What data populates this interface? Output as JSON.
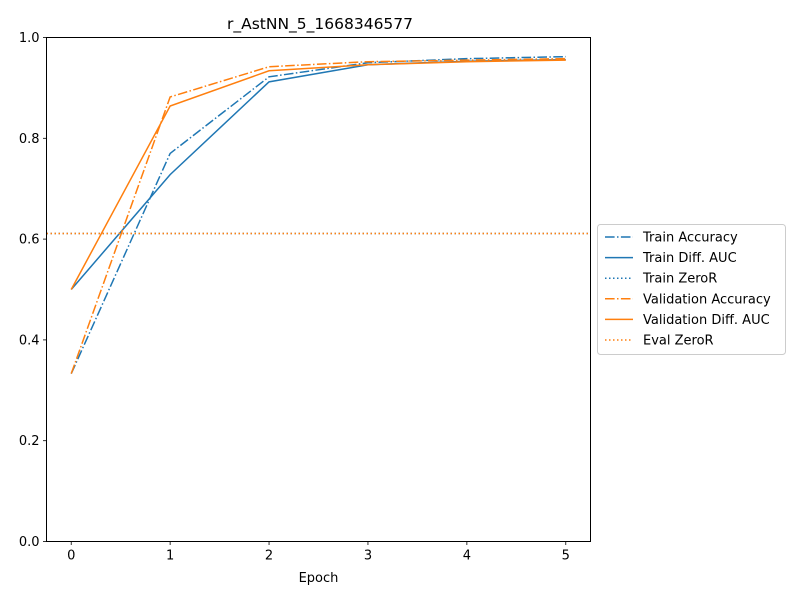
{
  "chart_data": {
    "type": "line",
    "title": "r_AstNN_5_1668346577",
    "xlabel": "Epoch",
    "ylabel": "",
    "xlim": [
      -0.25,
      5.25
    ],
    "ylim": [
      0,
      1.0
    ],
    "x_ticks": [
      "0",
      "1",
      "2",
      "3",
      "4",
      "5"
    ],
    "y_ticks": [
      "0.0",
      "0.2",
      "0.4",
      "0.6",
      "0.8",
      "1.0"
    ],
    "grid": false,
    "legend_position": "center-right-outside",
    "x": [
      0,
      1,
      2,
      3,
      4,
      5
    ],
    "series": [
      {
        "name": "Train Accuracy",
        "color": "#1f77b4",
        "style": "dashdot",
        "values": [
          0.333,
          0.77,
          0.922,
          0.95,
          0.958,
          0.962
        ]
      },
      {
        "name": "Train Diff. AUC",
        "color": "#1f77b4",
        "style": "solid",
        "values": [
          0.5,
          0.728,
          0.912,
          0.946,
          0.953,
          0.956
        ]
      },
      {
        "name": "Train ZeroR",
        "color": "#1f77b4",
        "style": "dotted",
        "values": [
          0.611,
          0.611,
          0.611,
          0.611,
          0.611,
          0.611
        ]
      },
      {
        "name": "Validation Accuracy",
        "color": "#ff7f0e",
        "style": "dashdot",
        "values": [
          0.333,
          0.882,
          0.942,
          0.952,
          0.955,
          0.958
        ]
      },
      {
        "name": "Validation Diff. AUC",
        "color": "#ff7f0e",
        "style": "solid",
        "values": [
          0.5,
          0.864,
          0.934,
          0.946,
          0.952,
          0.955
        ]
      },
      {
        "name": "Eval ZeroR",
        "color": "#ff7f0e",
        "style": "dotted",
        "values": [
          0.611,
          0.611,
          0.611,
          0.611,
          0.611,
          0.611
        ]
      }
    ]
  }
}
